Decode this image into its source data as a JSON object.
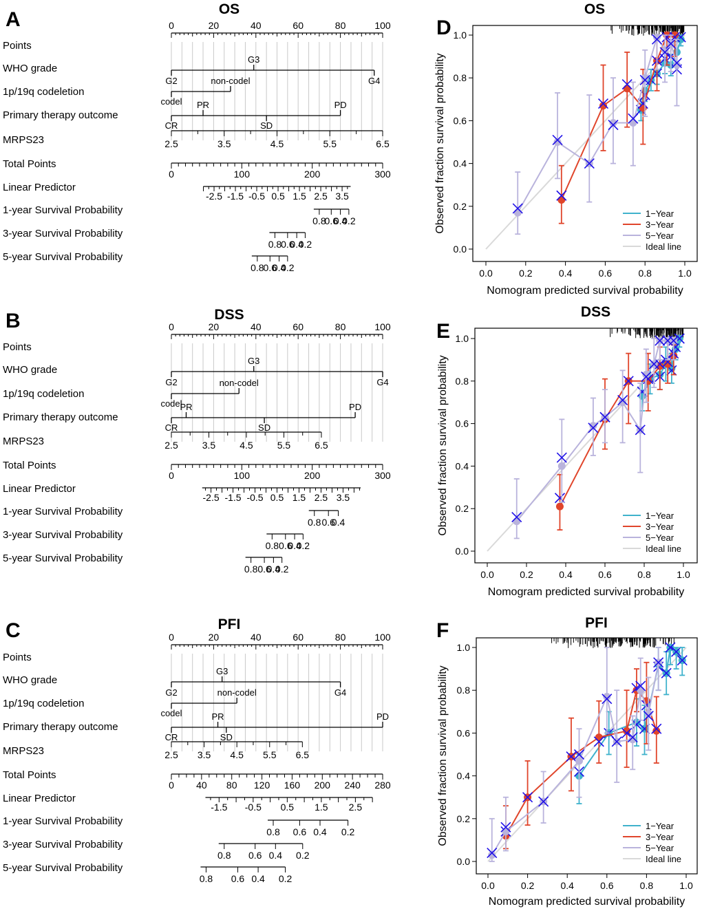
{
  "figure": {
    "palette": {
      "one_year": "#3fb2cc",
      "three_year": "#e0452b",
      "five_year": "#b9b3dc",
      "ideal": "#d9d9d9",
      "cross": "#1f10e8",
      "grid": "#c9c9c9",
      "axis": "#000000"
    },
    "row_labels": [
      "Points",
      "WHO grade",
      "1p/19q codeletion",
      "Primary therapy outcome",
      "MRPS23",
      "Total Points",
      "Linear Predictor",
      "1-year Survival Probability",
      "3-year Survival Probability",
      "5-year Survival Probability"
    ]
  },
  "nomograms": [
    {
      "panel": "A",
      "title": "OS",
      "points": {
        "ticks": [
          "0",
          "20",
          "40",
          "60",
          "80",
          "100"
        ]
      },
      "who_grade": {
        "labels": {
          "G2": "G2",
          "G3": "G3",
          "G4": "G4"
        },
        "values": {
          "G2": 0,
          "G3": 39,
          "G4": 96
        }
      },
      "codeletion": {
        "labels": {
          "codel": "codel",
          "noncodel": "non-codel"
        },
        "values": {
          "codel": 0,
          "noncodel": 28
        }
      },
      "therapy": {
        "labels": {
          "CR": "CR",
          "PR": "PR",
          "SD": "SD",
          "PD": "PD"
        },
        "values": {
          "CR": 0,
          "PR": 15,
          "SD": 45,
          "PD": 80
        }
      },
      "mrps23": {
        "ticks": [
          "2.5",
          "3.5",
          "4.5",
          "5.5",
          "6.5"
        ],
        "range": [
          2.5,
          6.5
        ],
        "points_range": [
          0,
          100
        ]
      },
      "total_points": {
        "ticks": [
          "0",
          "100",
          "200",
          "300"
        ],
        "max": 300
      },
      "linear_predictor": {
        "ticks": [
          "-2.5",
          "-1.5",
          "-0.5",
          "0.5",
          "1.5",
          "2.5",
          "3.5"
        ],
        "lp_at_0": -4.5,
        "lp_at_max": 5.4,
        "range": [
          -3.0,
          3.9
        ]
      },
      "survival": [
        {
          "name": "1-year",
          "labels": [
            "0.8",
            "0.6",
            "0.4",
            "0.2"
          ],
          "values": [
            0.8,
            0.6,
            0.4,
            0.2
          ],
          "tp": [
            210,
            227,
            240,
            252
          ]
        },
        {
          "name": "3-year",
          "labels": [
            "0.8",
            "0.6",
            "0.4",
            "0.2"
          ],
          "values": [
            0.8,
            0.6,
            0.4,
            0.2
          ],
          "tp": [
            147,
            165,
            178,
            190
          ]
        },
        {
          "name": "5-year",
          "labels": [
            "0.8",
            "0.6",
            "0.4",
            "0.2"
          ],
          "values": [
            0.8,
            0.6,
            0.4,
            0.2
          ],
          "tp": [
            122,
            140,
            153,
            165
          ]
        }
      ]
    },
    {
      "panel": "B",
      "title": "DSS",
      "points": {
        "ticks": [
          "0",
          "20",
          "40",
          "60",
          "80",
          "100"
        ]
      },
      "who_grade": {
        "labels": {
          "G2": "G2",
          "G3": "G3",
          "G4": "G4"
        },
        "values": {
          "G2": 0,
          "G3": 39,
          "G4": 100
        }
      },
      "codeletion": {
        "labels": {
          "codel": "codel",
          "noncodel": "non-codel"
        },
        "values": {
          "codel": 0,
          "noncodel": 32
        }
      },
      "therapy": {
        "labels": {
          "CR": "CR",
          "PR": "PR",
          "SD": "SD",
          "PD": "PD"
        },
        "values": {
          "CR": 0,
          "PR": 7,
          "SD": 44,
          "PD": 87
        }
      },
      "mrps23": {
        "ticks": [
          "2.5",
          "3.5",
          "4.5",
          "5.5",
          "6.5"
        ],
        "range": [
          2.5,
          6.5
        ],
        "points_range": [
          0,
          71
        ]
      },
      "total_points": {
        "ticks": [
          "0",
          "100",
          "200",
          "300"
        ],
        "max": 300
      },
      "linear_predictor": {
        "ticks": [
          "-2.5",
          "-1.5",
          "-0.5",
          "0.5",
          "1.5",
          "2.5",
          "3.5"
        ],
        "lp_at_0": -4.3,
        "lp_at_max": 5.3,
        "range": [
          -2.9,
          4.3
        ]
      },
      "survival": [
        {
          "name": "1-year",
          "labels": [
            "0.8",
            "0.6",
            "0.4"
          ],
          "values": [
            0.8,
            0.6,
            0.4
          ],
          "tp": [
            203,
            223,
            237
          ]
        },
        {
          "name": "3-year",
          "labels": [
            "0.8",
            "0.6",
            "0.4",
            "0.2"
          ],
          "values": [
            0.8,
            0.6,
            0.4,
            0.2
          ],
          "tp": [
            143,
            162,
            175,
            187
          ]
        },
        {
          "name": "5-year",
          "labels": [
            "0.8",
            "0.6",
            "0.4",
            "0.2"
          ],
          "values": [
            0.8,
            0.6,
            0.4,
            0.2
          ],
          "tp": [
            113,
            132,
            145,
            157
          ]
        }
      ]
    },
    {
      "panel": "C",
      "title": "PFI",
      "points": {
        "ticks": [
          "0",
          "20",
          "40",
          "60",
          "80",
          "100"
        ]
      },
      "who_grade": {
        "labels": {
          "G2": "G2",
          "G3": "G3",
          "G4": "G4"
        },
        "values": {
          "G2": 0,
          "G3": 24,
          "G4": 80
        }
      },
      "codeletion": {
        "labels": {
          "codel": "codel",
          "noncodel": "non-codel"
        },
        "values": {
          "codel": 0,
          "noncodel": 31
        }
      },
      "therapy": {
        "labels": {
          "CR": "CR",
          "PR": "PR",
          "SD": "SD",
          "PD": "PD"
        },
        "values": {
          "CR": 0,
          "PR": 22,
          "SD": 26,
          "PD": 100
        }
      },
      "mrps23": {
        "ticks": [
          "2.5",
          "3.5",
          "4.5",
          "5.5",
          "6.5"
        ],
        "range": [
          2.5,
          6.5
        ],
        "points_range": [
          0,
          62
        ]
      },
      "total_points": {
        "ticks": [
          "0",
          "40",
          "80",
          "120",
          "160",
          "200",
          "240",
          "280"
        ],
        "max": 280,
        "minor_step": 10
      },
      "linear_predictor": {
        "ticks": [
          "-1.5",
          "-0.5",
          "0.5",
          "1.5",
          "2.5"
        ],
        "lp_at_0": -2.9,
        "lp_at_max": 3.3,
        "range": [
          -1.9,
          3.0
        ]
      },
      "survival": [
        {
          "name": "1-year",
          "labels": [
            "0.8",
            "0.6",
            "0.4",
            "0.2"
          ],
          "values": [
            0.8,
            0.6,
            0.4,
            0.2
          ],
          "tp": [
            135,
            170,
            197,
            234
          ]
        },
        {
          "name": "3-year",
          "labels": [
            "0.8",
            "0.6",
            "0.4",
            "0.2"
          ],
          "values": [
            0.8,
            0.6,
            0.4,
            0.2
          ],
          "tp": [
            70,
            111,
            138,
            174
          ]
        },
        {
          "name": "5-year",
          "labels": [
            "0.8",
            "0.6",
            "0.4",
            "0.2"
          ],
          "values": [
            0.8,
            0.6,
            0.4,
            0.2
          ],
          "tp": [
            46,
            88,
            115,
            151
          ]
        }
      ]
    }
  ],
  "chart_data": [
    {
      "panel": "D",
      "type": "line",
      "title": "OS",
      "xlabel": "Nomogram predicted survival probability",
      "ylabel": "Observed fraction survival probability",
      "xlim": [
        0,
        1
      ],
      "ylim": [
        0,
        1
      ],
      "xticks": [
        "0.0",
        "0.2",
        "0.4",
        "0.6",
        "0.8",
        "1.0"
      ],
      "yticks": [
        "0.0",
        "0.2",
        "0.4",
        "0.6",
        "0.8",
        "1.0"
      ],
      "legend": [
        "1−Year",
        "3−Year",
        "5−Year",
        "Ideal line"
      ],
      "series": [
        {
          "name": "1-Year",
          "x": [
            0.78,
            0.8,
            0.83,
            0.86,
            0.9,
            0.93,
            0.96,
            0.98
          ],
          "y": [
            0.65,
            0.74,
            0.79,
            0.82,
            0.87,
            0.86,
            0.92,
            0.98
          ],
          "lo": [
            0.6,
            0.69,
            0.74,
            0.77,
            0.82,
            0.81,
            0.87,
            0.95
          ],
          "hi": [
            0.7,
            0.79,
            0.84,
            0.87,
            0.92,
            0.91,
            0.97,
            1.0
          ],
          "cross_y": [
            0.65,
            0.72,
            0.79,
            0.82,
            0.89,
            0.9,
            0.84,
            0.99
          ]
        },
        {
          "name": "3-Year",
          "x": [
            0.38,
            0.59,
            0.71,
            0.79,
            0.86,
            0.91,
            0.95
          ],
          "y": [
            0.23,
            0.67,
            0.75,
            0.66,
            0.88,
            1.0,
            1.0
          ],
          "lo": [
            0.12,
            0.46,
            0.57,
            0.49,
            0.74,
            0.86,
            0.9
          ],
          "hi": [
            0.39,
            0.86,
            0.92,
            0.84,
            0.98,
            1.0,
            1.0
          ],
          "cross_y": [
            0.25,
            0.68,
            0.77,
            0.68,
            0.88,
            0.99,
            0.99
          ]
        },
        {
          "name": "5-Year",
          "x": [
            0.16,
            0.36,
            0.52,
            0.64,
            0.74,
            0.8,
            0.86,
            0.9,
            0.93,
            0.96
          ],
          "y": [
            0.17,
            0.5,
            0.4,
            0.59,
            0.59,
            0.8,
            0.99,
            0.93,
            0.96,
            0.86
          ],
          "lo": [
            0.07,
            0.33,
            0.22,
            0.4,
            0.39,
            0.62,
            0.84,
            0.78,
            0.83,
            0.67
          ],
          "hi": [
            0.36,
            0.73,
            0.72,
            0.8,
            0.78,
            0.93,
            1.0,
            1.0,
            1.0,
            0.98
          ],
          "cross_y": [
            0.19,
            0.51,
            0.4,
            0.58,
            0.61,
            0.79,
            0.98,
            0.92,
            0.96,
            0.87
          ]
        }
      ]
    },
    {
      "panel": "E",
      "type": "line",
      "title": "DSS",
      "xlabel": "Nomogram predicted survival probability",
      "ylabel": "Observed fraction survival probability",
      "xlim": [
        0,
        1
      ],
      "ylim": [
        0,
        1
      ],
      "xticks": [
        "0.0",
        "0.2",
        "0.4",
        "0.6",
        "0.8",
        "1.0"
      ],
      "yticks": [
        "0.0",
        "0.2",
        "0.4",
        "0.6",
        "0.8",
        "1.0"
      ],
      "legend": [
        "1−Year",
        "3−Year",
        "5−Year",
        "Ideal line"
      ],
      "series": [
        {
          "name": "1-Year",
          "x": [
            0.79,
            0.83,
            0.88,
            0.91,
            0.94,
            0.96,
            0.98
          ],
          "y": [
            0.73,
            0.81,
            0.83,
            0.88,
            0.86,
            0.95,
            1.0
          ],
          "lo": [
            0.66,
            0.74,
            0.76,
            0.8,
            0.79,
            0.9,
            0.96
          ],
          "hi": [
            0.8,
            0.88,
            0.9,
            0.96,
            0.93,
            1.0,
            1.0
          ],
          "cross_y": [
            0.75,
            0.81,
            0.82,
            0.9,
            0.85,
            0.96,
            1.0
          ]
        },
        {
          "name": "3-Year",
          "x": [
            0.37,
            0.6,
            0.72,
            0.82,
            0.88,
            0.92,
            0.95
          ],
          "y": [
            0.21,
            0.62,
            0.8,
            0.8,
            0.87,
            0.88,
            0.92
          ],
          "lo": [
            0.1,
            0.48,
            0.6,
            0.66,
            0.76,
            0.79,
            0.83
          ],
          "hi": [
            0.36,
            0.81,
            0.93,
            0.93,
            0.96,
            0.99,
            0.97
          ],
          "cross_y": [
            0.25,
            0.63,
            0.8,
            0.81,
            0.88,
            0.89,
            0.93
          ]
        },
        {
          "name": "5-Year",
          "x": [
            0.15,
            0.38,
            0.54,
            0.6,
            0.69,
            0.78,
            0.81,
            0.85,
            0.88,
            0.92,
            0.95
          ],
          "y": [
            0.14,
            0.4,
            0.59,
            0.63,
            0.7,
            0.57,
            0.83,
            0.88,
            0.99,
            0.99,
            0.99
          ],
          "lo": [
            0.06,
            0.23,
            0.45,
            0.51,
            0.51,
            0.37,
            0.7,
            0.77,
            0.9,
            0.9,
            0.9
          ],
          "hi": [
            0.34,
            0.62,
            0.72,
            0.76,
            0.85,
            0.79,
            0.95,
            1.0,
            1.0,
            1.0,
            1.0
          ],
          "cross_y": [
            0.16,
            0.44,
            0.58,
            0.63,
            0.71,
            0.57,
            0.82,
            0.88,
            0.99,
            0.99,
            0.99
          ]
        }
      ]
    },
    {
      "panel": "F",
      "type": "line",
      "title": "PFI",
      "xlabel": "Nomogram predicted survival probability",
      "ylabel": "Observed fraction survival probability",
      "xlim": [
        0,
        1
      ],
      "ylim": [
        0,
        1
      ],
      "xticks": [
        "0.0",
        "0.2",
        "0.4",
        "0.6",
        "0.8",
        "1.0"
      ],
      "yticks": [
        "0.0",
        "0.2",
        "0.4",
        "0.6",
        "0.8",
        "1.0"
      ],
      "legend": [
        "1−Year",
        "3−Year",
        "5−Year",
        "Ideal line"
      ],
      "series": [
        {
          "name": "1-Year",
          "x": [
            0.46,
            0.61,
            0.75,
            0.79,
            0.86,
            0.9,
            0.92,
            0.95,
            0.98
          ],
          "y": [
            0.4,
            0.6,
            0.65,
            0.62,
            0.92,
            0.88,
            1.0,
            0.98,
            0.94
          ],
          "lo": [
            0.27,
            0.5,
            0.54,
            0.5,
            0.8,
            0.78,
            0.92,
            0.9,
            0.87
          ],
          "hi": [
            0.5,
            0.7,
            0.76,
            0.73,
            1.0,
            0.98,
            1.0,
            1.0,
            1.0
          ],
          "cross_y": [
            0.42,
            0.6,
            0.64,
            0.62,
            0.91,
            0.88,
            1.0,
            0.98,
            0.94
          ]
        },
        {
          "name": "3-Year",
          "x": [
            0.09,
            0.2,
            0.42,
            0.56,
            0.7,
            0.75,
            0.8,
            0.85
          ],
          "y": [
            0.12,
            0.3,
            0.49,
            0.58,
            0.61,
            0.8,
            0.75,
            0.61
          ],
          "lo": [
            0.06,
            0.17,
            0.33,
            0.46,
            0.44,
            0.7,
            0.55,
            0.46
          ],
          "hi": [
            0.26,
            0.47,
            0.67,
            0.75,
            0.8,
            0.9,
            0.93,
            0.77
          ],
          "cross_y": [
            0.14,
            0.3,
            0.49,
            0.56,
            0.6,
            0.81,
            0.73,
            0.62
          ]
        },
        {
          "name": "5-Year",
          "x": [
            0.02,
            0.09,
            0.28,
            0.46,
            0.6,
            0.65,
            0.73,
            0.77,
            0.81,
            0.86
          ],
          "y": [
            0.03,
            0.14,
            0.28,
            0.47,
            0.77,
            0.56,
            0.57,
            0.8,
            0.69,
            0.93
          ],
          "lo": [
            0.0,
            0.05,
            0.18,
            0.3,
            0.6,
            0.37,
            0.43,
            0.66,
            0.52,
            0.8
          ],
          "hi": [
            0.2,
            0.3,
            0.42,
            0.62,
            1.0,
            0.8,
            0.68,
            0.95,
            0.86,
            1.0
          ],
          "cross_y": [
            0.04,
            0.16,
            0.28,
            0.5,
            0.76,
            0.56,
            0.58,
            0.82,
            0.68,
            0.93
          ]
        }
      ]
    }
  ]
}
